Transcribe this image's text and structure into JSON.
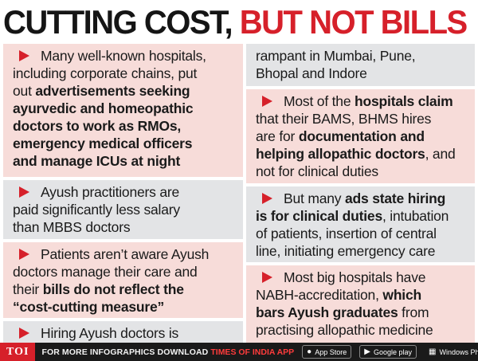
{
  "headline": {
    "part1": "CUTTING COST, ",
    "part2": "BUT NOT BILLS"
  },
  "left": {
    "c1": {
      "l1": "Many well-known hospitals,",
      "l2": "including corporate chains, put",
      "l3a": "out ",
      "l3b": "advertisements seeking",
      "l4": "ayurvedic and homeopathic",
      "l5": "doctors to work as RMOs,",
      "l6": "emergency medical officers",
      "l7": "and  manage ICUs at night"
    },
    "c2": {
      "l1": "Ayush practitioners are",
      "l2": "paid significantly less salary",
      "l3": "than MBBS doctors"
    },
    "c3": {
      "l1": "Patients aren’t aware Ayush",
      "l2": "doctors manage their care and",
      "l3a": "their ",
      "l3b": "bills do not reflect the",
      "l4": "“cost-cutting measure”"
    },
    "c4": {
      "l1": "Hiring Ayush doctors is"
    }
  },
  "right": {
    "c1": {
      "l1": "rampant in Mumbai, Pune,",
      "l2": "Bhopal and Indore"
    },
    "c2": {
      "l1a": "Most of the ",
      "l1b": "hospitals claim",
      "l2": "that their BAMS, BHMS hires",
      "l3a": "are for ",
      "l3b": "documentation and",
      "l4a": "helping allopathic doctors",
      "l4b": ", and",
      "l5": "not for clinical duties"
    },
    "c3": {
      "l1a": "But many ",
      "l1b": "ads state hiring",
      "l2a": "is for clinical duties",
      "l2b": ", intubation",
      "l3": "of patients, insertion of central",
      "l4": "line, initiating emergency care"
    },
    "c4": {
      "l1": "Most big hospitals have",
      "l2a": "NABH-accreditation, ",
      "l2b": "which",
      "l3a": "bars Ayush graduates",
      "l3b": " from",
      "l4": "practising allopathic medicine"
    }
  },
  "footer": {
    "logo": "TOI",
    "text": "FOR MORE  INFOGRAPHICS DOWNLOAD",
    "brand": "TIMES OF INDIA  APP",
    "appstore": "App Store",
    "googleplay": "Google play",
    "windows": "Windows Phone"
  },
  "colors": {
    "accent": "#d6202a",
    "pink": "#f7dcd9",
    "gray": "#e3e4e6"
  }
}
